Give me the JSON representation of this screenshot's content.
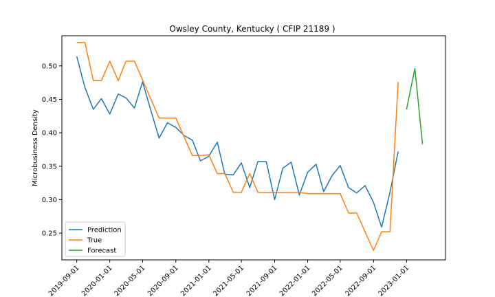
{
  "chart_data": {
    "type": "line",
    "title": "Owsley County, Kentucky ( CFIP 21189 )",
    "xlabel": "",
    "ylabel": "Microbusiness Density",
    "x_ticks": [
      "2019-09-01",
      "2020-01-01",
      "2020-05-01",
      "2020-09-01",
      "2021-01-01",
      "2021-05-01",
      "2021-09-01",
      "2022-01-01",
      "2022-05-01",
      "2022-09-01",
      "2023-01-01"
    ],
    "y_ticks": [
      "0.25",
      "0.30",
      "0.35",
      "0.40",
      "0.45",
      "0.50"
    ],
    "ylim": [
      0.21,
      0.545
    ],
    "xlim": [
      "2019-07-08",
      "2023-05-25"
    ],
    "legend_position": "lower-left",
    "series": [
      {
        "name": "Prediction",
        "color": "#1f77b4",
        "points": [
          [
            "2019-09-01",
            0.514
          ],
          [
            "2019-10-01",
            0.468
          ],
          [
            "2019-11-01",
            0.435
          ],
          [
            "2019-12-01",
            0.451
          ],
          [
            "2020-01-01",
            0.428
          ],
          [
            "2020-02-01",
            0.458
          ],
          [
            "2020-03-01",
            0.452
          ],
          [
            "2020-04-01",
            0.437
          ],
          [
            "2020-05-01",
            0.476
          ],
          [
            "2020-06-01",
            0.433
          ],
          [
            "2020-07-01",
            0.392
          ],
          [
            "2020-08-01",
            0.415
          ],
          [
            "2020-09-01",
            0.408
          ],
          [
            "2020-10-01",
            0.396
          ],
          [
            "2020-11-01",
            0.389
          ],
          [
            "2020-12-01",
            0.358
          ],
          [
            "2021-01-01",
            0.365
          ],
          [
            "2021-02-01",
            0.386
          ],
          [
            "2021-03-01",
            0.338
          ],
          [
            "2021-04-01",
            0.337
          ],
          [
            "2021-05-01",
            0.355
          ],
          [
            "2021-06-01",
            0.318
          ],
          [
            "2021-07-01",
            0.357
          ],
          [
            "2021-08-01",
            0.357
          ],
          [
            "2021-09-01",
            0.3
          ],
          [
            "2021-10-01",
            0.347
          ],
          [
            "2021-11-01",
            0.356
          ],
          [
            "2021-12-01",
            0.307
          ],
          [
            "2022-01-01",
            0.341
          ],
          [
            "2022-02-01",
            0.353
          ],
          [
            "2022-03-01",
            0.312
          ],
          [
            "2022-04-01",
            0.336
          ],
          [
            "2022-05-01",
            0.351
          ],
          [
            "2022-06-01",
            0.318
          ],
          [
            "2022-07-01",
            0.31
          ],
          [
            "2022-08-01",
            0.321
          ],
          [
            "2022-09-01",
            0.296
          ],
          [
            "2022-10-01",
            0.259
          ],
          [
            "2022-11-01",
            0.311
          ],
          [
            "2022-12-01",
            0.372
          ]
        ]
      },
      {
        "name": "True",
        "color": "#ff7f0e",
        "points": [
          [
            "2019-09-01",
            0.535
          ],
          [
            "2019-10-01",
            0.535
          ],
          [
            "2019-11-01",
            0.478
          ],
          [
            "2019-12-01",
            0.478
          ],
          [
            "2020-01-01",
            0.507
          ],
          [
            "2020-02-01",
            0.478
          ],
          [
            "2020-03-01",
            0.507
          ],
          [
            "2020-04-01",
            0.507
          ],
          [
            "2020-05-01",
            0.479
          ],
          [
            "2020-06-01",
            0.45
          ],
          [
            "2020-07-01",
            0.422
          ],
          [
            "2020-08-01",
            0.422
          ],
          [
            "2020-09-01",
            0.422
          ],
          [
            "2020-10-01",
            0.394
          ],
          [
            "2020-11-01",
            0.366
          ],
          [
            "2020-12-01",
            0.366
          ],
          [
            "2021-01-01",
            0.367
          ],
          [
            "2021-02-01",
            0.339
          ],
          [
            "2021-03-01",
            0.339
          ],
          [
            "2021-04-01",
            0.311
          ],
          [
            "2021-05-01",
            0.311
          ],
          [
            "2021-06-01",
            0.339
          ],
          [
            "2021-07-01",
            0.311
          ],
          [
            "2021-08-01",
            0.311
          ],
          [
            "2021-09-01",
            0.311
          ],
          [
            "2021-10-01",
            0.311
          ],
          [
            "2021-11-01",
            0.311
          ],
          [
            "2021-12-01",
            0.311
          ],
          [
            "2022-01-01",
            0.309
          ],
          [
            "2022-02-01",
            0.309
          ],
          [
            "2022-03-01",
            0.309
          ],
          [
            "2022-04-01",
            0.309
          ],
          [
            "2022-05-01",
            0.309
          ],
          [
            "2022-06-01",
            0.28
          ],
          [
            "2022-07-01",
            0.28
          ],
          [
            "2022-08-01",
            0.252
          ],
          [
            "2022-09-01",
            0.224
          ],
          [
            "2022-10-01",
            0.252
          ],
          [
            "2022-11-01",
            0.252
          ],
          [
            "2022-12-01",
            0.476
          ]
        ]
      },
      {
        "name": "Forecast",
        "color": "#2ca02c",
        "points": [
          [
            "2023-01-01",
            0.435
          ],
          [
            "2023-02-01",
            0.496
          ],
          [
            "2023-03-01",
            0.383
          ]
        ]
      }
    ]
  }
}
